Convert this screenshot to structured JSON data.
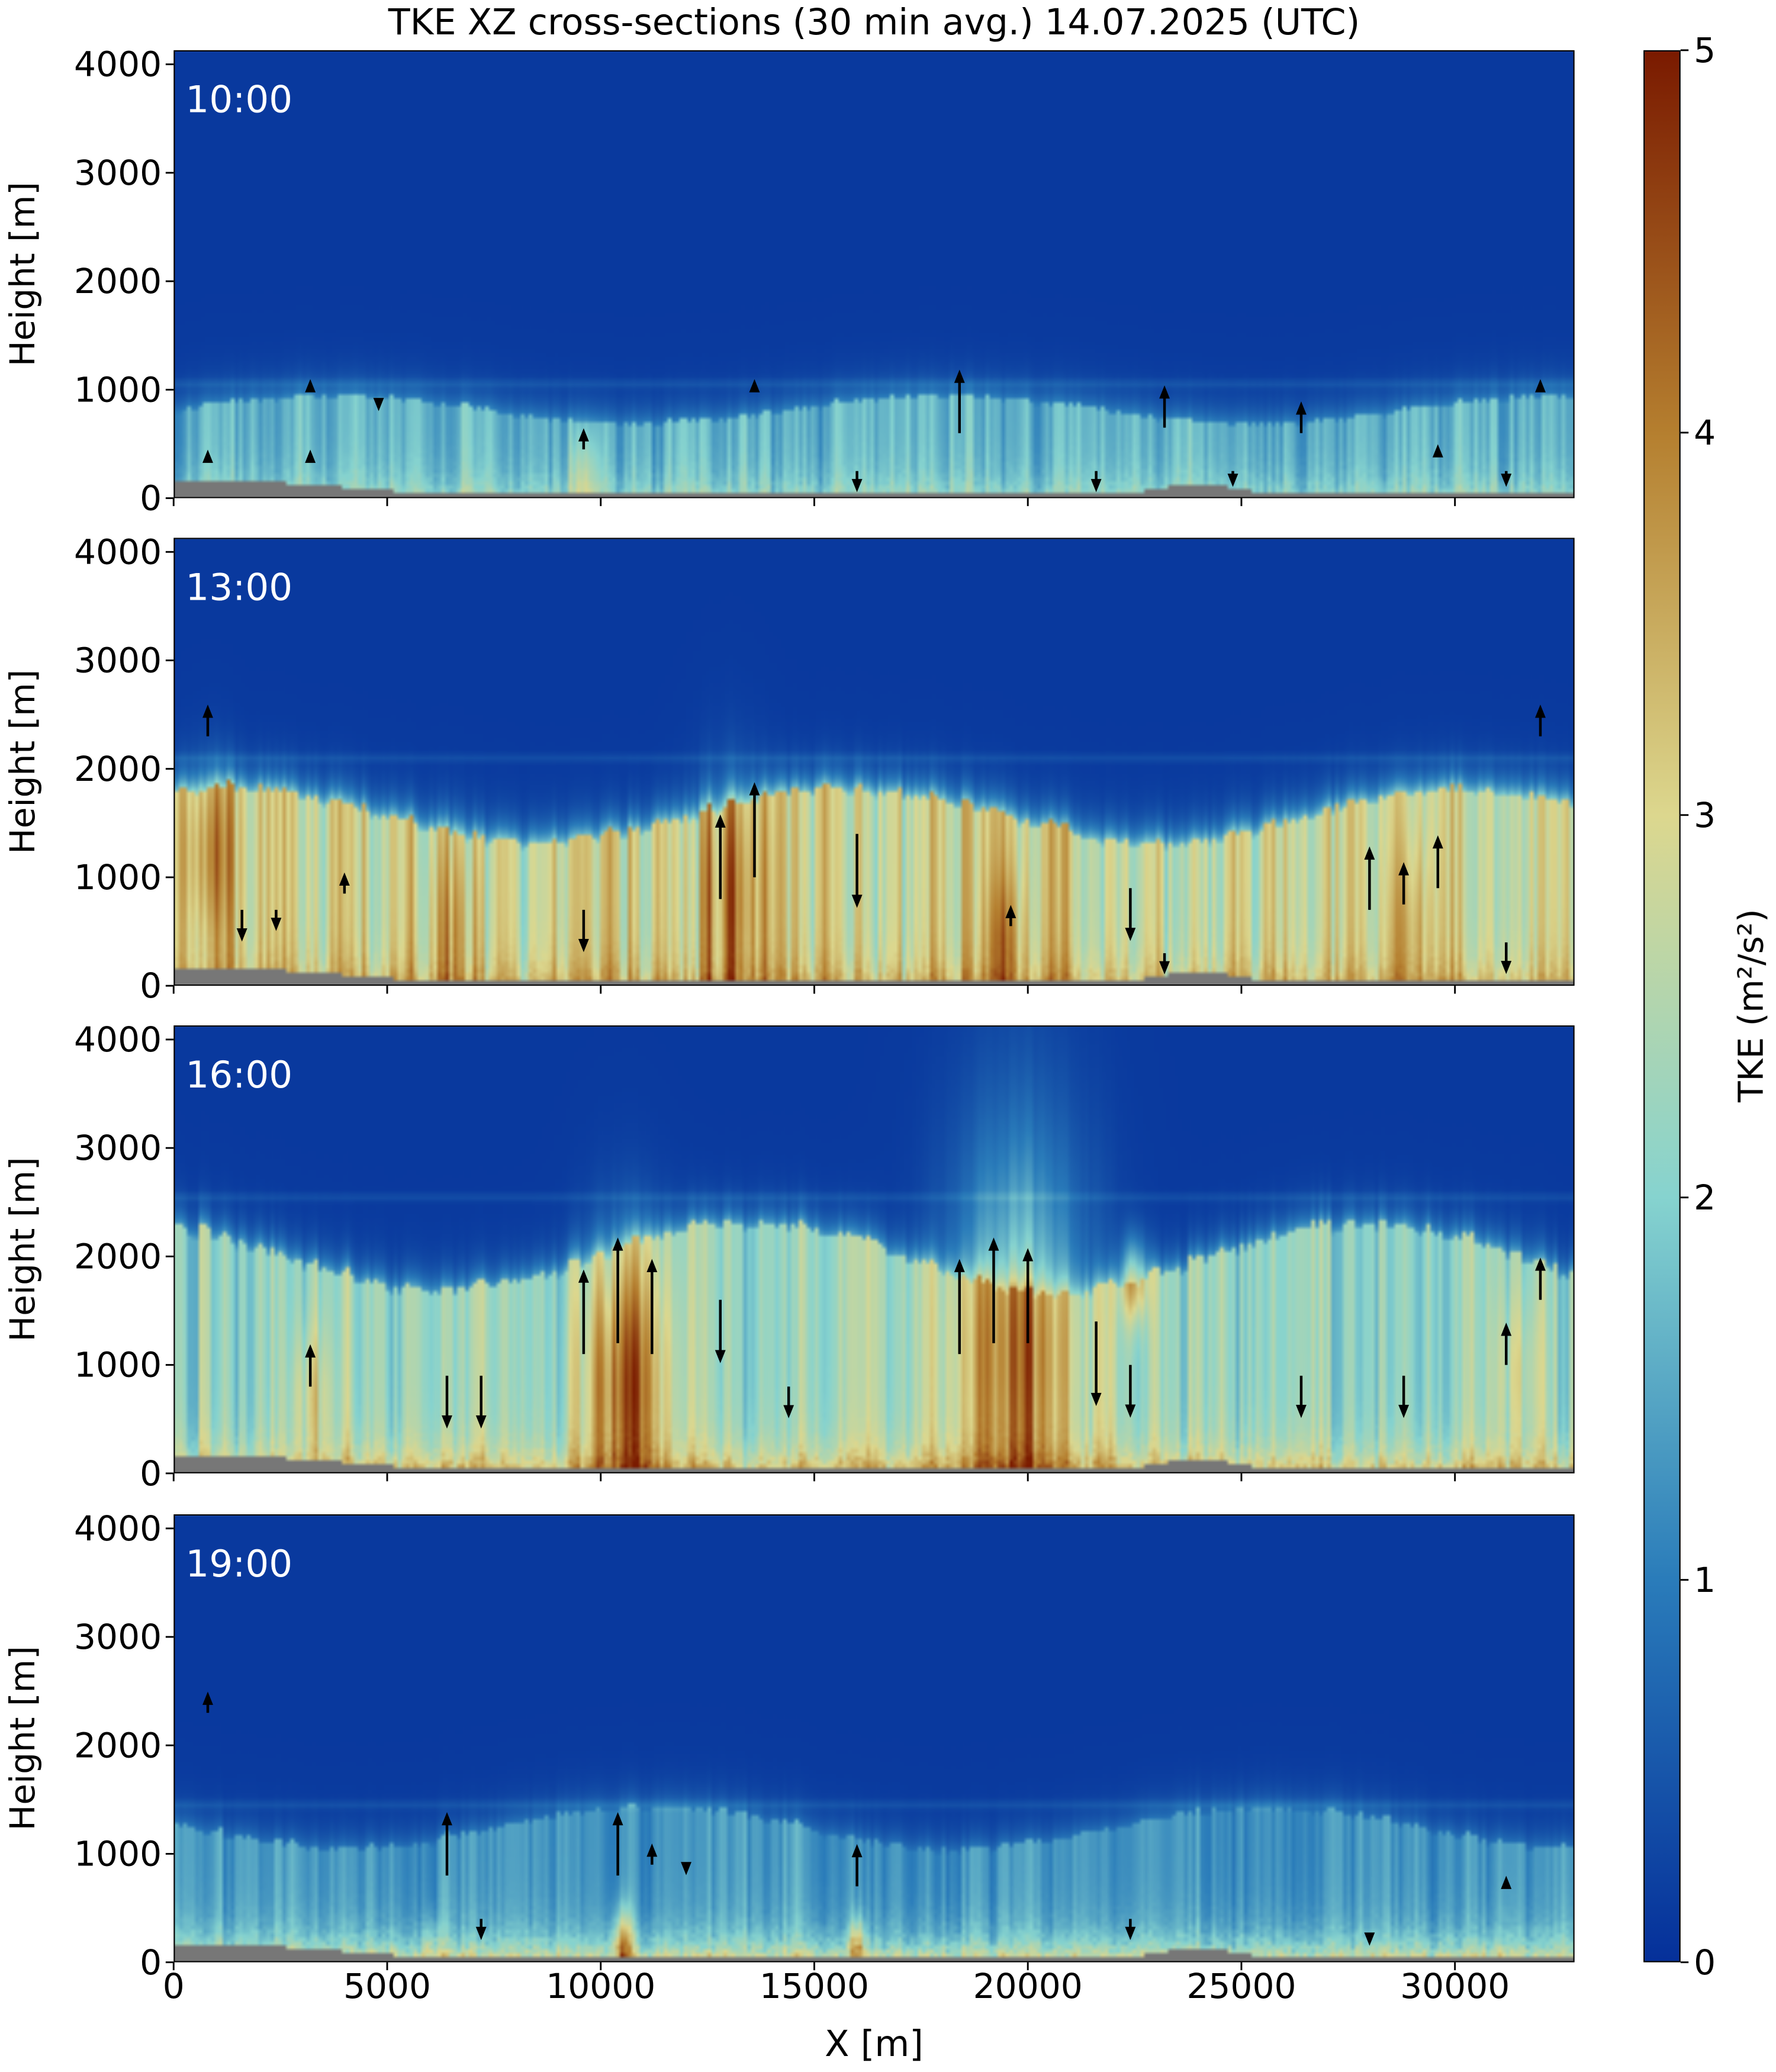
{
  "title": "TKE XZ cross-sections (30 min avg.) 14.07.2025 (UTC)",
  "chart_data": {
    "type": "heatmap",
    "title": "TKE XZ cross-sections (30 min avg.) 14.07.2025 (UTC)",
    "xlabel": "X [m]",
    "ylabel": "Height [m]",
    "xlim": [
      0,
      32800
    ],
    "ylim": [
      0,
      4130
    ],
    "xticks": [
      0,
      5000,
      10000,
      15000,
      20000,
      25000,
      30000
    ],
    "yticks": [
      0,
      1000,
      2000,
      3000,
      4000
    ],
    "colorbar": {
      "label": "TKE (m²/s²)",
      "range": [
        0,
        5
      ],
      "ticks": [
        0,
        1,
        2,
        3,
        4,
        5
      ],
      "colors": [
        "#05309a",
        "#2a7cba",
        "#86d3cf",
        "#dcd78e",
        "#b57f2f",
        "#7a1a00"
      ]
    },
    "terrain_color": "#777777",
    "panels": [
      {
        "label": "10:00",
        "bl_height": 850,
        "bl_tke": 1.6,
        "surface_tke": 2.3,
        "inversion": 1050,
        "hotspots": [
          [
            9600,
            150,
            1.0,
            300
          ]
        ],
        "arrows": [
          [
            800,
            350,
            1
          ],
          [
            3200,
            350,
            1
          ],
          [
            3200,
            1000,
            0.5
          ],
          [
            4800,
            900,
            -0.5
          ],
          [
            9600,
            450,
            2
          ],
          [
            13600,
            1000,
            0.5
          ],
          [
            16000,
            250,
            -2
          ],
          [
            18400,
            600,
            6
          ],
          [
            21600,
            250,
            -2
          ],
          [
            23200,
            650,
            4
          ],
          [
            24800,
            250,
            -1.5
          ],
          [
            26400,
            600,
            3
          ],
          [
            29600,
            400,
            1
          ],
          [
            31200,
            250,
            -1.5
          ],
          [
            32000,
            1000,
            0.5
          ]
        ]
      },
      {
        "label": "13:00",
        "bl_height": 1650,
        "bl_tke": 2.9,
        "surface_tke": 3.6,
        "inversion": 2100,
        "hotspots": [
          [
            800,
            1200,
            0.9,
            500
          ],
          [
            13000,
            800,
            1.0,
            700
          ],
          [
            6500,
            500,
            0.7,
            500
          ],
          [
            19500,
            400,
            0.8,
            400
          ],
          [
            29000,
            500,
            0.7,
            500
          ]
        ],
        "arrows": [
          [
            800,
            2300,
            3
          ],
          [
            1600,
            700,
            -3
          ],
          [
            2400,
            700,
            -2
          ],
          [
            4000,
            850,
            2
          ],
          [
            9600,
            700,
            -4
          ],
          [
            12800,
            800,
            8
          ],
          [
            13600,
            1000,
            9
          ],
          [
            16000,
            1400,
            -7
          ],
          [
            19600,
            550,
            2
          ],
          [
            22400,
            900,
            -5
          ],
          [
            23200,
            300,
            -2
          ],
          [
            28000,
            700,
            6
          ],
          [
            28800,
            750,
            4
          ],
          [
            29600,
            900,
            5
          ],
          [
            31200,
            400,
            -3
          ],
          [
            32000,
            2300,
            3
          ]
        ]
      },
      {
        "label": "16:00",
        "bl_height": 2100,
        "bl_tke": 2.2,
        "surface_tke": 3.5,
        "inversion": 2550,
        "hotspots": [
          [
            10500,
            800,
            2.2,
            800
          ],
          [
            19800,
            1100,
            2.3,
            1300
          ],
          [
            22500,
            1800,
            1.8,
            250
          ],
          [
            3200,
            700,
            0.8,
            400
          ],
          [
            31500,
            900,
            0.6,
            500
          ]
        ],
        "arrows": [
          [
            3200,
            800,
            4
          ],
          [
            6400,
            900,
            -5
          ],
          [
            7200,
            900,
            -5
          ],
          [
            9600,
            1100,
            8
          ],
          [
            10400,
            1200,
            10
          ],
          [
            11200,
            1100,
            9
          ],
          [
            12800,
            1600,
            -6
          ],
          [
            14400,
            800,
            -3
          ],
          [
            18400,
            1100,
            9
          ],
          [
            19200,
            1200,
            10
          ],
          [
            20000,
            1200,
            9
          ],
          [
            21600,
            1400,
            -8
          ],
          [
            22400,
            1000,
            -5
          ],
          [
            26400,
            900,
            -4
          ],
          [
            28800,
            900,
            -4
          ],
          [
            31200,
            1000,
            4
          ],
          [
            32000,
            1600,
            4
          ]
        ]
      },
      {
        "label": "19:00",
        "bl_height": 1300,
        "bl_tke": 1.3,
        "surface_tke": 3.2,
        "inversion": 1450,
        "hotspots": [
          [
            10500,
            150,
            2.0,
            200
          ],
          [
            16000,
            150,
            1.6,
            150
          ],
          [
            6000,
            150,
            0.8,
            150
          ]
        ],
        "arrows": [
          [
            800,
            2300,
            2
          ],
          [
            6400,
            800,
            6
          ],
          [
            7200,
            400,
            -2
          ],
          [
            10400,
            800,
            6
          ],
          [
            11200,
            900,
            2
          ],
          [
            12000,
            900,
            -1
          ],
          [
            16000,
            700,
            4
          ],
          [
            22400,
            400,
            -2
          ],
          [
            28000,
            250,
            -1
          ],
          [
            31200,
            700,
            1
          ]
        ]
      }
    ]
  }
}
